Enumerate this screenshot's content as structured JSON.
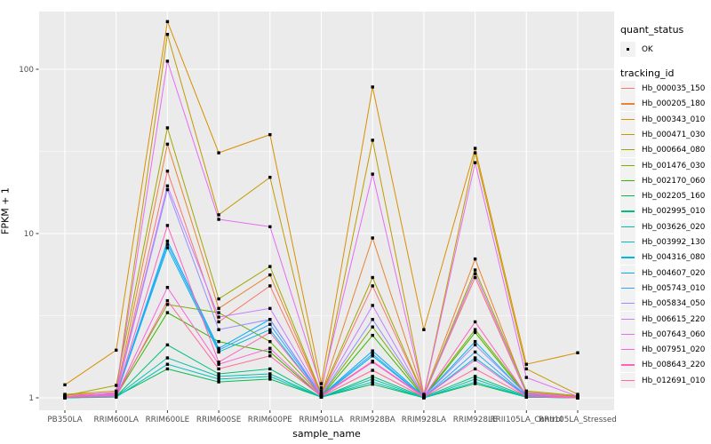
{
  "chart_data": {
    "type": "line",
    "title": "",
    "xlabel": "sample_name",
    "ylabel": "FPKM + 1",
    "y_scale": "log10",
    "ylim": [
      0.85,
      230
    ],
    "grid": true,
    "legend_position": "right",
    "panel_bg": "#EBEBEB",
    "gridline_color": "#FFFFFF",
    "tick_text_color": "#4D4D4D",
    "point_marker_color": "#000000",
    "y_ticks": [
      1,
      10,
      100
    ],
    "y_tick_labels": [
      "1",
      "10",
      "100"
    ],
    "y_minor_ticks": [
      3.1623,
      31.623
    ],
    "categories": [
      "PB350LA",
      "RRIM600LA",
      "RRIM600LE",
      "RRIM600SE",
      "RRIM600PE",
      "RRIM901LA",
      "RRIM928BA",
      "RRIM928LA",
      "RRIM928LE",
      "RRII105LA_Control",
      "RRII105LA_Stressed"
    ],
    "legend": {
      "quant_status_title": "quant_status",
      "quant_status_ok_label": "OK",
      "tracking_id_title": "tracking_id"
    },
    "series": [
      {
        "name": "Hb_000035_150",
        "color": "#F8766D",
        "values": [
          1.02,
          1.05,
          24,
          2.9,
          4.8,
          1.04,
          4.8,
          1.03,
          5.4,
          1.06,
          1.02
        ]
      },
      {
        "name": "Hb_000205_180",
        "color": "#EA8331",
        "values": [
          1.04,
          1.07,
          35,
          3.5,
          5.6,
          1.05,
          9.4,
          1.04,
          7.0,
          1.08,
          1.02
        ]
      },
      {
        "name": "Hb_000343_010",
        "color": "#D89000",
        "values": [
          1.2,
          1.95,
          195,
          31,
          40,
          1.22,
          78,
          2.6,
          33,
          1.6,
          1.88
        ]
      },
      {
        "name": "Hb_000471_030",
        "color": "#C09B00",
        "values": [
          1.05,
          1.1,
          163,
          13,
          22,
          1.1,
          37,
          1.05,
          31,
          1.5,
          1.05
        ]
      },
      {
        "name": "Hb_000664_080",
        "color": "#A3A500",
        "values": [
          1.03,
          1.19,
          44,
          4.0,
          6.3,
          1.06,
          5.4,
          1.03,
          6.0,
          1.1,
          1.03
        ]
      },
      {
        "name": "Hb_001476_030",
        "color": "#7CAE00",
        "values": [
          1.02,
          1.05,
          3.7,
          3.3,
          2.2,
          1.03,
          2.7,
          1.02,
          2.6,
          1.05,
          1.02
        ]
      },
      {
        "name": "Hb_002170_060",
        "color": "#39B600",
        "values": [
          1.01,
          1.03,
          3.3,
          2.2,
          1.9,
          1.02,
          2.4,
          1.01,
          2.5,
          1.03,
          1.01
        ]
      },
      {
        "name": "Hb_002205_160",
        "color": "#00BB4E",
        "values": [
          1.0,
          1.02,
          1.5,
          1.25,
          1.3,
          1.01,
          1.21,
          1.0,
          1.22,
          1.01,
          1.0
        ]
      },
      {
        "name": "Hb_002995_010",
        "color": "#00BF7D",
        "values": [
          1.0,
          1.02,
          2.1,
          1.4,
          1.5,
          1.01,
          1.35,
          1.01,
          1.35,
          1.02,
          1.0
        ]
      },
      {
        "name": "Hb_003626_020",
        "color": "#00C1A3",
        "values": [
          1.0,
          1.02,
          1.75,
          1.35,
          1.4,
          1.01,
          1.3,
          1.0,
          1.3,
          1.01,
          1.0
        ]
      },
      {
        "name": "Hb_003992_130",
        "color": "#00BFC4",
        "values": [
          1.0,
          1.01,
          1.6,
          1.3,
          1.35,
          1.01,
          1.25,
          1.0,
          1.25,
          1.01,
          1.0
        ]
      },
      {
        "name": "Hb_004316_080",
        "color": "#00BAE0",
        "values": [
          1.01,
          1.03,
          8.2,
          1.9,
          2.6,
          1.02,
          1.8,
          1.01,
          1.75,
          1.03,
          1.0
        ]
      },
      {
        "name": "Hb_004607_020",
        "color": "#00B0F6",
        "values": [
          1.01,
          1.04,
          9.0,
          2.0,
          3.0,
          1.03,
          1.93,
          1.02,
          2.2,
          1.04,
          1.01
        ]
      },
      {
        "name": "Hb_005743_010",
        "color": "#35A2FF",
        "values": [
          1.01,
          1.03,
          8.6,
          1.95,
          2.8,
          1.03,
          1.85,
          1.01,
          1.9,
          1.03,
          1.01
        ]
      },
      {
        "name": "Hb_005834_050",
        "color": "#9590FF",
        "values": [
          1.01,
          1.05,
          18.5,
          2.6,
          3.0,
          1.04,
          3.0,
          1.02,
          2.1,
          1.05,
          1.01
        ]
      },
      {
        "name": "Hb_006615_220",
        "color": "#C77CFF",
        "values": [
          1.01,
          1.06,
          19.5,
          3.1,
          3.5,
          1.05,
          3.65,
          1.02,
          5.7,
          1.07,
          1.01
        ]
      },
      {
        "name": "Hb_007643_060",
        "color": "#E76BF3",
        "values": [
          1.02,
          1.08,
          112,
          12.2,
          11,
          1.15,
          23,
          1.04,
          27,
          1.33,
          1.02
        ]
      },
      {
        "name": "Hb_007951_020",
        "color": "#FA62DB",
        "values": [
          1.01,
          1.03,
          4.7,
          1.6,
          2.0,
          1.02,
          1.65,
          1.01,
          1.7,
          1.02,
          1.0
        ]
      },
      {
        "name": "Hb_008643_220",
        "color": "#FF62BC",
        "values": [
          1.02,
          1.04,
          11.2,
          1.65,
          2.5,
          1.03,
          1.67,
          1.02,
          2.9,
          1.04,
          1.01
        ]
      },
      {
        "name": "Hb_012691_010",
        "color": "#FF6A98",
        "values": [
          1.01,
          1.02,
          3.9,
          1.5,
          1.8,
          1.02,
          1.47,
          1.01,
          1.5,
          1.02,
          1.0
        ]
      }
    ]
  }
}
